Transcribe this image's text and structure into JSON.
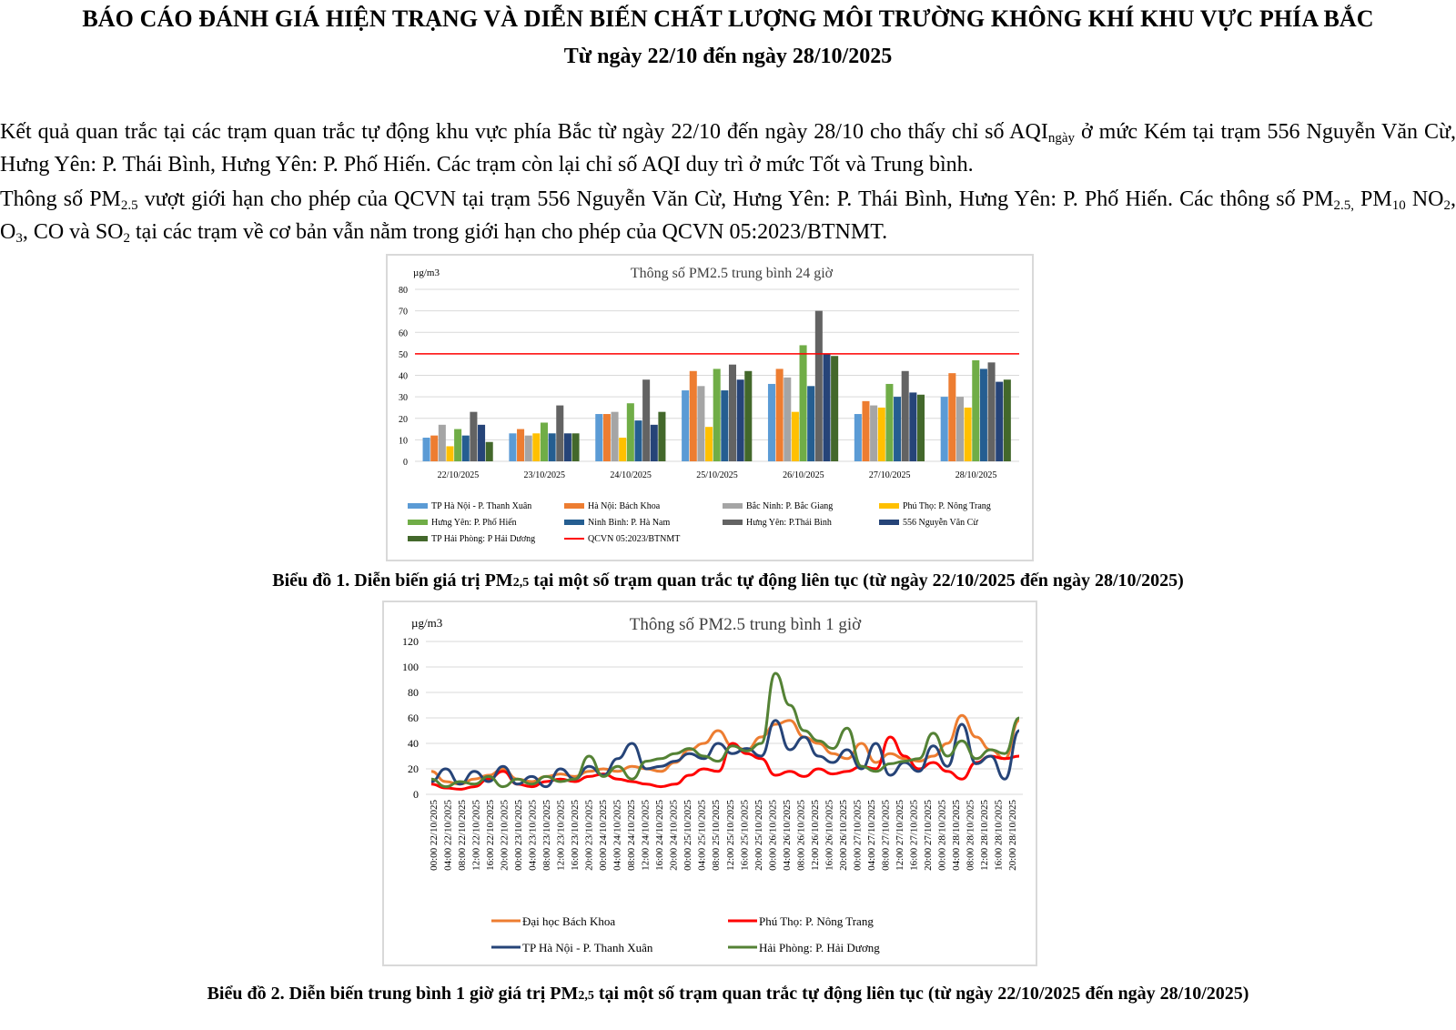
{
  "header": {
    "title": "BÁO CÁO ĐÁNH GIÁ HIỆN TRẠNG VÀ DIỄN BIẾN CHẤT LƯỢNG MÔI TRƯỜNG KHÔNG KHÍ KHU VỰC PHÍA BẮC",
    "subtitle": "Từ ngày 22/10 đến ngày 28/10/2025"
  },
  "para1": {
    "a": "Kết quả quan trắc tại các trạm quan trắc tự động khu vực phía Bắc từ ngày 22/10 đến ngày 28/10 cho thấy chỉ số AQI",
    "sub": "ngày",
    "b": " ở mức Kém tại trạm 556 Nguyễn Văn Cừ, Hưng Yên: P. Thái Bình, Hưng Yên: P. Phố Hiến. Các trạm còn lại chỉ số AQI duy trì ở mức Tốt và Trung bình."
  },
  "para2": {
    "t1": "Thông số PM",
    "s1": "2.5",
    "t2": " vượt giới hạn cho phép của QCVN tại trạm 556 Nguyễn Văn Cừ, Hưng Yên: P. Thái Bình, Hưng Yên: P. Phố Hiến. Các thông số PM",
    "s2": "2.5,",
    "t3": " PM",
    "s3": "10",
    "t4": "  NO",
    "s4": "2",
    "t5": ", O",
    "s5": "3",
    "t6": ", CO và SO",
    "s6": "2",
    "t7": " tại các trạm về cơ bản vẫn nằm trong giới hạn cho phép của QCVN 05:2023/BTNMT."
  },
  "caption1": {
    "a": "Biểu đồ 1. Diễn biến giá trị PM",
    "sub": "2,5",
    "b": " tại một số trạm quan trắc tự động liên tục (từ ngày 22/10/2025 đến ngày 28/10/2025)"
  },
  "caption2": {
    "a": "Biểu đồ 2. Diễn biến trung bình 1 giờ giá trị PM",
    "sub": "2,5",
    "b": " tại một số trạm quan trắc tự động liên tục (từ ngày 22/10/2025 đến ngày 28/10/2025)"
  },
  "chart_data": [
    {
      "type": "bar",
      "title": "Thông số PM2.5 trung bình 24 giờ",
      "ylabel": "µg/m3",
      "ylim": [
        0,
        80
      ],
      "yticks": [
        0,
        10,
        20,
        30,
        40,
        50,
        60,
        70,
        80
      ],
      "grid": true,
      "legend": "bottom",
      "categories": [
        "22/10/2025",
        "23/10/2025",
        "24/10/2025",
        "25/10/2025",
        "26/10/2025",
        "27/10/2025",
        "28/10/2025"
      ],
      "series": [
        {
          "name": "TP Hà Nội - P. Thanh Xuân",
          "color": "#5b9bd5",
          "values": [
            11,
            13,
            22,
            33,
            36,
            22,
            30
          ]
        },
        {
          "name": "Hà Nội: Bách Khoa",
          "color": "#ed7d31",
          "values": [
            12,
            15,
            22,
            42,
            43,
            28,
            41
          ]
        },
        {
          "name": "Bắc Ninh: P. Bắc Giang",
          "color": "#a5a5a5",
          "values": [
            17,
            12,
            23,
            35,
            39,
            26,
            30
          ]
        },
        {
          "name": "Phú Thọ: P. Nông Trang",
          "color": "#ffc000",
          "values": [
            7,
            13,
            11,
            16,
            23,
            25,
            25
          ]
        },
        {
          "name": "Hưng Yên: P. Phố Hiến",
          "color": "#70ad47",
          "values": [
            15,
            18,
            27,
            43,
            54,
            36,
            47
          ]
        },
        {
          "name": "Ninh Bình: P. Hà Nam",
          "color": "#255e91",
          "values": [
            12,
            13,
            19,
            33,
            35,
            30,
            43
          ]
        },
        {
          "name": "Hưng Yên: P.Thái Bình",
          "color": "#636363",
          "values": [
            23,
            26,
            38,
            45,
            70,
            42,
            46
          ]
        },
        {
          "name": "556 Nguyễn Văn Cừ",
          "color": "#264478",
          "values": [
            17,
            13,
            17,
            38,
            50,
            32,
            37
          ]
        },
        {
          "name": "TP Hải Phòng: P Hải Dương",
          "color": "#43682b",
          "values": [
            9,
            13,
            23,
            42,
            49,
            31,
            38
          ]
        }
      ],
      "threshold": {
        "name": "QCVN 05:2023/BTNMT",
        "value": 50,
        "color": "#ff0000"
      }
    },
    {
      "type": "line",
      "title": "Thông số PM2.5 trung bình 1 giờ",
      "ylabel": "µg/m3",
      "ylim": [
        0,
        120
      ],
      "yticks": [
        0,
        20,
        40,
        60,
        80,
        100,
        120
      ],
      "grid": true,
      "legend": "bottom",
      "x_tick_labels": [
        "00:00 22/10/2025",
        "04:00 22/10/2025",
        "08:00 22/10/2025",
        "12:00 22/10/2025",
        "16:00 22/10/2025",
        "20:00 22/10/2025",
        "00:00 23/10/2025",
        "04:00 23/10/2025",
        "08:00 23/10/2025",
        "12:00 23/10/2025",
        "16:00 23/10/2025",
        "20:00 23/10/2025",
        "00:00 24/10/2025",
        "04:00 24/10/2025",
        "08:00 24/10/2025",
        "12:00 24/10/2025",
        "16:00 24/10/2025",
        "20:00 24/10/2025",
        "00:00 25/10/2025",
        "04:00 25/10/2025",
        "08:00 25/10/2025",
        "12:00 25/10/2025",
        "16:00 25/10/2025",
        "20:00 25/10/2025",
        "00:00 26/10/2025",
        "04:00 26/10/2025",
        "08:00 26/10/2025",
        "12:00 26/10/2025",
        "16:00 26/10/2025",
        "20:00 26/10/2025",
        "00:00 27/10/2025",
        "04:00 27/10/2025",
        "08:00 27/10/2025",
        "12:00 27/10/2025",
        "16:00 27/10/2025",
        "20:00 27/10/2025",
        "00:00 28/10/2025",
        "04:00 28/10/2025",
        "08:00 28/10/2025",
        "12:00 28/10/2025",
        "16:00 28/10/2025",
        "20:00 28/10/2025"
      ],
      "series": [
        {
          "name": "Đại học Bách Khoa",
          "color": "#ed7d31",
          "values": [
            18,
            10,
            8,
            12,
            15,
            20,
            12,
            10,
            14,
            16,
            14,
            18,
            20,
            18,
            22,
            20,
            18,
            25,
            35,
            40,
            50,
            38,
            35,
            45,
            55,
            58,
            45,
            40,
            32,
            28,
            40,
            25,
            32,
            28,
            26,
            30,
            40,
            62,
            45,
            35,
            28,
            58
          ]
        },
        {
          "name": "Phú Thọ: P. Nông Trang",
          "color": "#ff0000",
          "values": [
            8,
            5,
            4,
            6,
            12,
            18,
            8,
            6,
            10,
            12,
            10,
            14,
            16,
            12,
            10,
            8,
            6,
            8,
            15,
            20,
            18,
            40,
            32,
            28,
            15,
            18,
            14,
            20,
            16,
            18,
            22,
            20,
            45,
            30,
            20,
            25,
            18,
            12,
            25,
            30,
            28,
            30
          ]
        },
        {
          "name": "TP Hà Nội - P. Thanh Xuân",
          "color": "#264478",
          "values": [
            10,
            20,
            8,
            18,
            10,
            22,
            8,
            14,
            6,
            20,
            12,
            22,
            15,
            28,
            40,
            20,
            22,
            26,
            32,
            28,
            40,
            32,
            36,
            30,
            58,
            35,
            45,
            30,
            25,
            35,
            20,
            40,
            15,
            25,
            18,
            38,
            22,
            55,
            24,
            30,
            12,
            50
          ]
        },
        {
          "name": "Hải Phòng: P. Hải Dương",
          "color": "#548235",
          "values": [
            12,
            6,
            10,
            8,
            14,
            6,
            12,
            8,
            14,
            10,
            12,
            30,
            14,
            22,
            12,
            26,
            28,
            32,
            36,
            30,
            26,
            38,
            34,
            40,
            95,
            70,
            50,
            42,
            36,
            52,
            22,
            18,
            24,
            26,
            28,
            48,
            30,
            42,
            28,
            35,
            32,
            60
          ]
        }
      ]
    }
  ]
}
